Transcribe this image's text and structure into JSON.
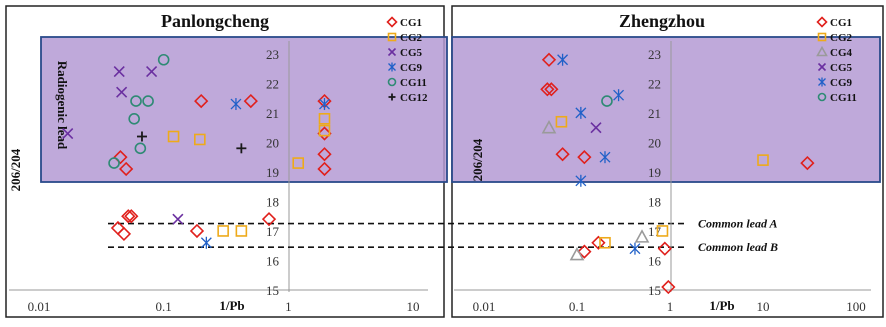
{
  "chart_data": [
    {
      "type": "scatter",
      "title": "Panlongcheng",
      "xlabel": "1/Pb",
      "ylabel": "206/204",
      "region_label": "Radiogenic lead",
      "xscale": "log",
      "xlim": [
        0.01,
        10
      ],
      "ylim": [
        15,
        23.3
      ],
      "x_ticks": [
        {
          "v": 0.01,
          "label": "0.01"
        },
        {
          "v": 0.1,
          "label": "0.1"
        },
        {
          "v": 1,
          "label": "1"
        },
        {
          "v": 10,
          "label": "10"
        }
      ],
      "y_ticks": [
        15,
        16,
        17,
        18,
        19,
        20,
        21,
        22,
        23
      ],
      "highlight_band": {
        "label": "Radiogenic lead",
        "ymin": 18.5,
        "ymax": 23.3
      },
      "ref_lines": [
        {
          "label": "Common lead A",
          "y": 17.25
        },
        {
          "label": "Common lead B",
          "y": 16.45
        }
      ],
      "legend_position": "top-right",
      "series": [
        {
          "name": "CG1",
          "marker": "diamond",
          "color": "#e0201c",
          "points": [
            [
              0.043,
              17.1
            ],
            [
              0.048,
              16.9
            ],
            [
              0.052,
              17.5
            ],
            [
              0.055,
              17.5
            ],
            [
              0.185,
              17.0
            ],
            [
              0.7,
              17.4
            ],
            [
              0.045,
              19.5
            ],
            [
              0.05,
              19.1
            ],
            [
              0.2,
              21.4
            ],
            [
              0.5,
              21.4
            ],
            [
              1.95,
              21.4
            ],
            [
              1.95,
              20.3
            ],
            [
              1.95,
              19.6
            ],
            [
              1.95,
              19.1
            ]
          ]
        },
        {
          "name": "CG2",
          "marker": "square",
          "color": "#eeaa1a",
          "points": [
            [
              0.12,
              20.2
            ],
            [
              0.195,
              20.1
            ],
            [
              1.2,
              19.3
            ],
            [
              1.95,
              20.8
            ],
            [
              1.95,
              20.4
            ],
            [
              0.3,
              17.0
            ],
            [
              0.42,
              17.0
            ]
          ]
        },
        {
          "name": "CG5",
          "marker": "cross",
          "color": "#6a2fa0",
          "points": [
            [
              0.017,
              20.3
            ],
            [
              0.044,
              22.4
            ],
            [
              0.046,
              21.7
            ],
            [
              0.08,
              22.4
            ],
            [
              0.13,
              17.4
            ]
          ]
        },
        {
          "name": "CG9",
          "marker": "asterisk",
          "color": "#2060c8",
          "points": [
            [
              0.38,
              21.3
            ],
            [
              1.95,
              21.3
            ],
            [
              0.22,
              16.6
            ]
          ]
        },
        {
          "name": "CG11",
          "marker": "circle",
          "color": "#2e8a74",
          "points": [
            [
              0.1,
              22.8
            ],
            [
              0.06,
              21.4
            ],
            [
              0.075,
              21.4
            ],
            [
              0.058,
              20.8
            ],
            [
              0.065,
              19.8
            ],
            [
              0.04,
              19.3
            ]
          ]
        },
        {
          "name": "CG12",
          "marker": "plus",
          "color": "#1a1a1a",
          "points": [
            [
              0.067,
              20.2
            ],
            [
              0.42,
              19.8
            ]
          ]
        }
      ]
    },
    {
      "type": "scatter",
      "title": "Zhengzhou",
      "xlabel": "1/Pb",
      "ylabel": "206/204",
      "xscale": "log",
      "xlim": [
        0.01,
        100
      ],
      "ylim": [
        15,
        23.3
      ],
      "x_ticks": [
        {
          "v": 0.01,
          "label": "0.01"
        },
        {
          "v": 0.1,
          "label": "0.1"
        },
        {
          "v": 1,
          "label": "1"
        },
        {
          "v": 10,
          "label": "10"
        },
        {
          "v": 100,
          "label": "100"
        }
      ],
      "y_ticks": [
        15,
        16,
        17,
        18,
        19,
        20,
        21,
        22,
        23
      ],
      "legend_position": "top-right",
      "series": [
        {
          "name": "CG1",
          "marker": "diamond",
          "color": "#e0201c",
          "points": [
            [
              0.05,
              22.8
            ],
            [
              0.048,
              21.8
            ],
            [
              0.053,
              21.8
            ],
            [
              0.07,
              19.6
            ],
            [
              0.12,
              19.5
            ],
            [
              30,
              19.3
            ],
            [
              0.17,
              16.6
            ],
            [
              0.88,
              16.4
            ],
            [
              0.12,
              16.3
            ],
            [
              0.96,
              15.1
            ]
          ]
        },
        {
          "name": "CG2",
          "marker": "square",
          "color": "#eeaa1a",
          "points": [
            [
              0.068,
              20.7
            ],
            [
              10,
              19.4
            ],
            [
              0.83,
              17.0
            ],
            [
              0.2,
              16.6
            ]
          ]
        },
        {
          "name": "CG4",
          "marker": "triangle",
          "color": "#9a9a9a",
          "points": [
            [
              0.05,
              20.5
            ],
            [
              0.1,
              16.2
            ],
            [
              0.5,
              16.8
            ]
          ]
        },
        {
          "name": "CG5",
          "marker": "cross",
          "color": "#6a2fa0",
          "points": [
            [
              0.16,
              20.5
            ]
          ]
        },
        {
          "name": "CG9",
          "marker": "asterisk",
          "color": "#2060c8",
          "points": [
            [
              0.07,
              22.8
            ],
            [
              0.11,
              21.0
            ],
            [
              0.28,
              21.6
            ],
            [
              0.2,
              19.5
            ],
            [
              0.11,
              18.7
            ],
            [
              0.42,
              16.4
            ]
          ]
        },
        {
          "name": "CG11",
          "marker": "circle",
          "color": "#2e8a74",
          "points": [
            [
              0.21,
              21.4
            ]
          ]
        }
      ]
    }
  ]
}
